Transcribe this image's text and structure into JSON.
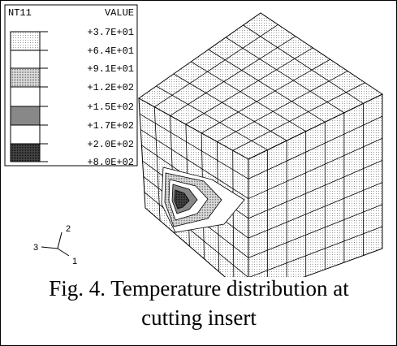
{
  "legend": {
    "variable": "NT11",
    "column": "VALUE",
    "levels": [
      "+3.7E+01",
      "+6.4E+01",
      "+9.1E+01",
      "+1.2E+02",
      "+1.5E+02",
      "+1.7E+02",
      "+2.0E+02",
      "+8.0E+02"
    ]
  },
  "triad": {
    "x": "1",
    "y": "2",
    "z": "3"
  },
  "caption": "Fig. 4. Temperature distribution at cutting insert"
}
